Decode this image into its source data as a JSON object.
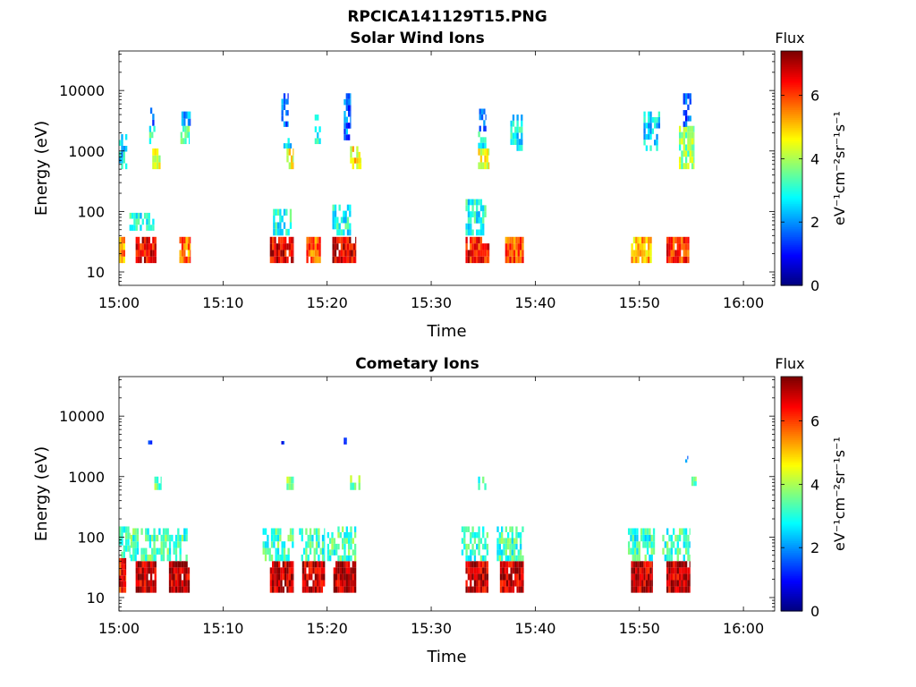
{
  "figure": {
    "title": "RPCICA141129T15.PNG"
  },
  "colormap": "jet",
  "chart_data": [
    {
      "type": "heatmap",
      "title": "Solar Wind Ions",
      "xlabel": "Time",
      "ylabel": "Energy (eV)",
      "x_ticks": [
        "15:00",
        "15:10",
        "15:20",
        "15:30",
        "15:40",
        "15:50",
        "16:00"
      ],
      "x_range_minutes": [
        0,
        63
      ],
      "y_scale": "log",
      "y_ticks": [
        "10",
        "100",
        "1000",
        "10000"
      ],
      "y_range": [
        6,
        45000
      ],
      "colorbar": {
        "title": "Flux",
        "label": "eV⁻¹cm⁻²sr⁻¹s⁻¹",
        "ticks": [
          "0",
          "2",
          "4",
          "6"
        ],
        "range": [
          0,
          7.4
        ]
      },
      "series": [
        {
          "t": [
            0.0,
            0.6
          ],
          "e": [
            14,
            38
          ],
          "v": 5.4
        },
        {
          "t": [
            1.6,
            3.6
          ],
          "e": [
            14,
            38
          ],
          "v": 6.5
        },
        {
          "t": [
            1.0,
            3.4
          ],
          "e": [
            48,
            95
          ],
          "v": 2.8
        },
        {
          "t": [
            2.6,
            3.4
          ],
          "e": [
            2600,
            5200
          ],
          "v": 1.8
        },
        {
          "t": [
            2.9,
            3.6
          ],
          "e": [
            1300,
            2600
          ],
          "v": 3.0
        },
        {
          "t": [
            3.2,
            4.0
          ],
          "e": [
            500,
            1100
          ],
          "v": 4.4
        },
        {
          "t": [
            0.0,
            0.8
          ],
          "e": [
            500,
            1900
          ],
          "v": 2.6
        },
        {
          "t": [
            5.8,
            6.9
          ],
          "e": [
            14,
            38
          ],
          "v": 5.6
        },
        {
          "t": [
            5.9,
            6.8
          ],
          "e": [
            1300,
            2600
          ],
          "v": 3.4
        },
        {
          "t": [
            6.0,
            6.9
          ],
          "e": [
            2600,
            4500
          ],
          "v": 2.2
        },
        {
          "t": [
            14.5,
            16.8
          ],
          "e": [
            14,
            38
          ],
          "v": 6.6
        },
        {
          "t": [
            14.8,
            16.6
          ],
          "e": [
            40,
            110
          ],
          "v": 2.9
        },
        {
          "t": [
            15.8,
            16.6
          ],
          "e": [
            1100,
            2000
          ],
          "v": 2.6
        },
        {
          "t": [
            16.1,
            16.8
          ],
          "e": [
            500,
            1100
          ],
          "v": 4.5
        },
        {
          "t": [
            15.6,
            16.3
          ],
          "e": [
            2500,
            9000
          ],
          "v": 1.6
        },
        {
          "t": [
            18.0,
            19.4
          ],
          "e": [
            14,
            38
          ],
          "v": 5.8
        },
        {
          "t": [
            18.8,
            19.4
          ],
          "e": [
            1300,
            4000
          ],
          "v": 3.2
        },
        {
          "t": [
            20.5,
            22.8
          ],
          "e": [
            14,
            38
          ],
          "v": 6.7
        },
        {
          "t": [
            20.5,
            22.3
          ],
          "e": [
            40,
            130
          ],
          "v": 2.9
        },
        {
          "t": [
            22.2,
            23.3
          ],
          "e": [
            500,
            1200
          ],
          "v": 4.7
        },
        {
          "t": [
            21.6,
            22.3
          ],
          "e": [
            1500,
            9000
          ],
          "v": 1.7
        },
        {
          "t": [
            33.3,
            35.6
          ],
          "e": [
            14,
            38
          ],
          "v": 6.4
        },
        {
          "t": [
            33.3,
            35.3
          ],
          "e": [
            40,
            160
          ],
          "v": 2.9
        },
        {
          "t": [
            34.5,
            35.6
          ],
          "e": [
            500,
            1100
          ],
          "v": 4.6
        },
        {
          "t": [
            34.5,
            35.3
          ],
          "e": [
            1100,
            2100
          ],
          "v": 3.0
        },
        {
          "t": [
            34.6,
            35.3
          ],
          "e": [
            2100,
            5000
          ],
          "v": 1.8
        },
        {
          "t": [
            37.1,
            38.9
          ],
          "e": [
            14,
            38
          ],
          "v": 5.9
        },
        {
          "t": [
            37.6,
            38.8
          ],
          "e": [
            1000,
            4000
          ],
          "v": 2.8
        },
        {
          "t": [
            49.2,
            51.2
          ],
          "e": [
            14,
            38
          ],
          "v": 5.1
        },
        {
          "t": [
            50.4,
            52.0
          ],
          "e": [
            1000,
            4500
          ],
          "v": 2.5
        },
        {
          "t": [
            52.6,
            54.8
          ],
          "e": [
            14,
            38
          ],
          "v": 6.2
        },
        {
          "t": [
            53.8,
            55.3
          ],
          "e": [
            500,
            2600
          ],
          "v": 3.8
        },
        {
          "t": [
            54.2,
            55.0
          ],
          "e": [
            2500,
            9000
          ],
          "v": 1.6
        }
      ]
    },
    {
      "type": "heatmap",
      "title": "Cometary Ions",
      "xlabel": "Time",
      "ylabel": "Energy (eV)",
      "x_ticks": [
        "15:00",
        "15:10",
        "15:20",
        "15:30",
        "15:40",
        "15:50",
        "16:00"
      ],
      "x_range_minutes": [
        0,
        63
      ],
      "y_scale": "log",
      "y_ticks": [
        "10",
        "100",
        "1000",
        "10000"
      ],
      "y_range": [
        6,
        45000
      ],
      "colorbar": {
        "title": "Flux",
        "label": "eV⁻¹cm⁻²sr⁻¹s⁻¹",
        "ticks": [
          "0",
          "2",
          "4",
          "6"
        ],
        "range": [
          0,
          7.4
        ]
      },
      "series": [
        {
          "t": [
            0.0,
            0.7
          ],
          "e": [
            12,
            45
          ],
          "v": 6.4
        },
        {
          "t": [
            0.0,
            1.1
          ],
          "e": [
            45,
            150
          ],
          "v": 3.0
        },
        {
          "t": [
            1.6,
            3.6
          ],
          "e": [
            12,
            40
          ],
          "v": 6.9
        },
        {
          "t": [
            1.1,
            3.6
          ],
          "e": [
            40,
            140
          ],
          "v": 3.3
        },
        {
          "t": [
            4.8,
            6.8
          ],
          "e": [
            12,
            40
          ],
          "v": 6.9
        },
        {
          "t": [
            3.6,
            6.6
          ],
          "e": [
            40,
            140
          ],
          "v": 3.3
        },
        {
          "t": [
            3.4,
            4.1
          ],
          "e": [
            600,
            1000
          ],
          "v": 3.6
        },
        {
          "t": [
            2.8,
            3.2
          ],
          "e": [
            3400,
            4600
          ],
          "v": 1.2
        },
        {
          "t": [
            14.5,
            16.8
          ],
          "e": [
            12,
            40
          ],
          "v": 7.0
        },
        {
          "t": [
            13.8,
            16.8
          ],
          "e": [
            40,
            140
          ],
          "v": 3.3
        },
        {
          "t": [
            16.1,
            16.8
          ],
          "e": [
            600,
            1000
          ],
          "v": 3.6
        },
        {
          "t": [
            15.6,
            15.9
          ],
          "e": [
            3400,
            4400
          ],
          "v": 1.2
        },
        {
          "t": [
            17.6,
            19.8
          ],
          "e": [
            12,
            40
          ],
          "v": 6.9
        },
        {
          "t": [
            17.3,
            19.8
          ],
          "e": [
            40,
            140
          ],
          "v": 3.2
        },
        {
          "t": [
            20.6,
            22.8
          ],
          "e": [
            12,
            40
          ],
          "v": 7.0
        },
        {
          "t": [
            20.0,
            22.8
          ],
          "e": [
            40,
            150
          ],
          "v": 3.3
        },
        {
          "t": [
            22.2,
            23.2
          ],
          "e": [
            600,
            1050
          ],
          "v": 3.6
        },
        {
          "t": [
            21.6,
            21.9
          ],
          "e": [
            3400,
            4400
          ],
          "v": 1.2
        },
        {
          "t": [
            33.3,
            35.5
          ],
          "e": [
            12,
            40
          ],
          "v": 6.9
        },
        {
          "t": [
            32.9,
            35.5
          ],
          "e": [
            40,
            150
          ],
          "v": 3.2
        },
        {
          "t": [
            34.5,
            35.3
          ],
          "e": [
            600,
            1000
          ],
          "v": 3.4
        },
        {
          "t": [
            36.6,
            38.9
          ],
          "e": [
            12,
            40
          ],
          "v": 6.9
        },
        {
          "t": [
            36.3,
            38.9
          ],
          "e": [
            40,
            150
          ],
          "v": 3.2
        },
        {
          "t": [
            49.2,
            51.3
          ],
          "e": [
            12,
            40
          ],
          "v": 6.9
        },
        {
          "t": [
            48.9,
            51.5
          ],
          "e": [
            40,
            140
          ],
          "v": 3.1
        },
        {
          "t": [
            52.6,
            54.9
          ],
          "e": [
            12,
            40
          ],
          "v": 6.9
        },
        {
          "t": [
            52.2,
            54.9
          ],
          "e": [
            40,
            140
          ],
          "v": 3.2
        },
        {
          "t": [
            55.0,
            55.5
          ],
          "e": [
            700,
            1000
          ],
          "v": 3.6
        },
        {
          "t": [
            54.4,
            54.7
          ],
          "e": [
            1700,
            2200
          ],
          "v": 1.5
        }
      ]
    }
  ]
}
